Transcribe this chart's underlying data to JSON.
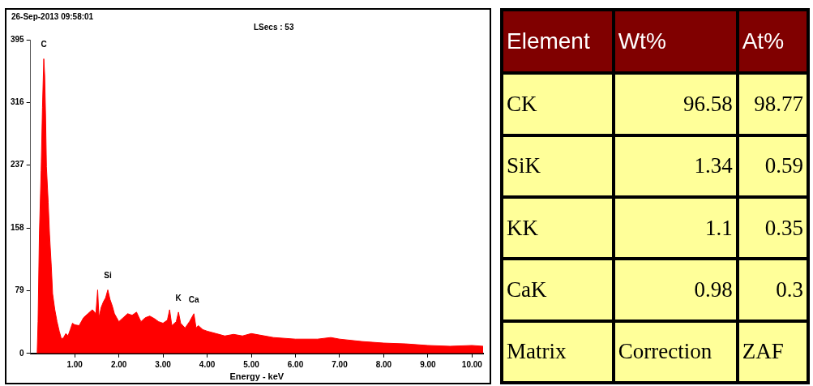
{
  "chart_data": [
    {
      "type": "area",
      "xlabel": "Energy - keV",
      "color": "#ff0000",
      "x": [
        0.15,
        0.17,
        0.2,
        0.24,
        0.27,
        0.3,
        0.32,
        0.34,
        0.36,
        0.4,
        0.43,
        0.47,
        0.5,
        0.55,
        0.6,
        0.65,
        0.7,
        0.75,
        0.8,
        0.85,
        0.9,
        0.95,
        1.0,
        1.1,
        1.2,
        1.3,
        1.4,
        1.48,
        1.52,
        1.55,
        1.6,
        1.65,
        1.7,
        1.75,
        1.8,
        1.85,
        1.9,
        2.0,
        2.1,
        2.2,
        2.3,
        2.4,
        2.5,
        2.6,
        2.7,
        2.8,
        2.9,
        3.0,
        3.1,
        3.15,
        3.2,
        3.3,
        3.35,
        3.4,
        3.5,
        3.6,
        3.7,
        3.75,
        3.8,
        3.9,
        4.0,
        4.2,
        4.4,
        4.6,
        4.8,
        5.0,
        5.2,
        5.5,
        6.0,
        6.5,
        6.8,
        7.0,
        7.5,
        8.0,
        8.5,
        9.0,
        9.5,
        10.0,
        10.25
      ],
      "values": [
        0,
        40,
        150,
        230,
        310,
        371,
        350,
        300,
        235,
        190,
        150,
        110,
        75,
        55,
        40,
        28,
        18,
        20,
        25,
        22,
        30,
        38,
        36,
        35,
        45,
        50,
        55,
        50,
        80,
        45,
        58,
        65,
        70,
        80,
        68,
        60,
        50,
        40,
        45,
        50,
        48,
        52,
        40,
        45,
        47,
        44,
        40,
        38,
        42,
        55,
        35,
        40,
        52,
        38,
        32,
        40,
        50,
        32,
        35,
        30,
        28,
        25,
        22,
        24,
        22,
        25,
        23,
        20,
        18,
        18,
        20,
        18,
        15,
        13,
        12,
        10,
        9,
        10,
        9
      ],
      "xlim": [
        0,
        10.25
      ],
      "ylim": [
        0,
        395
      ],
      "xticks": [
        {
          "value": 1,
          "label": "1.00"
        },
        {
          "value": 2,
          "label": "2.00"
        },
        {
          "value": 3,
          "label": "3.00"
        },
        {
          "value": 4,
          "label": "4.00"
        },
        {
          "value": 5,
          "label": "5.00"
        },
        {
          "value": 6,
          "label": "6.00"
        },
        {
          "value": 7,
          "label": "7.00"
        },
        {
          "value": 8,
          "label": "8.00"
        },
        {
          "value": 9,
          "label": "9.00"
        },
        {
          "value": 10,
          "label": "10.00"
        }
      ],
      "yticks": [
        0,
        79,
        158,
        237,
        316,
        395
      ],
      "grid": false,
      "legend": false,
      "annotations": [
        "26-Sep-2013 09:58:01",
        "LSecs : 53",
        {
          "text": "C",
          "x": 0.3,
          "y": 371
        },
        {
          "text": "Si",
          "x": 1.75,
          "y": 80
        },
        {
          "text": "K",
          "x": 3.35,
          "y": 52
        },
        {
          "text": "Ca",
          "x": 3.7,
          "y": 50
        }
      ]
    },
    {
      "type": "other",
      "annotations": [
        "Element",
        "Wt%",
        "At%",
        "CK",
        "96.58",
        "98.77",
        "SiK",
        "1.34",
        "0.59",
        "KK",
        "1.1",
        "0.35",
        "CaK",
        "0.98",
        "0.3",
        "Matrix",
        "Correction",
        "ZAF"
      ]
    }
  ]
}
